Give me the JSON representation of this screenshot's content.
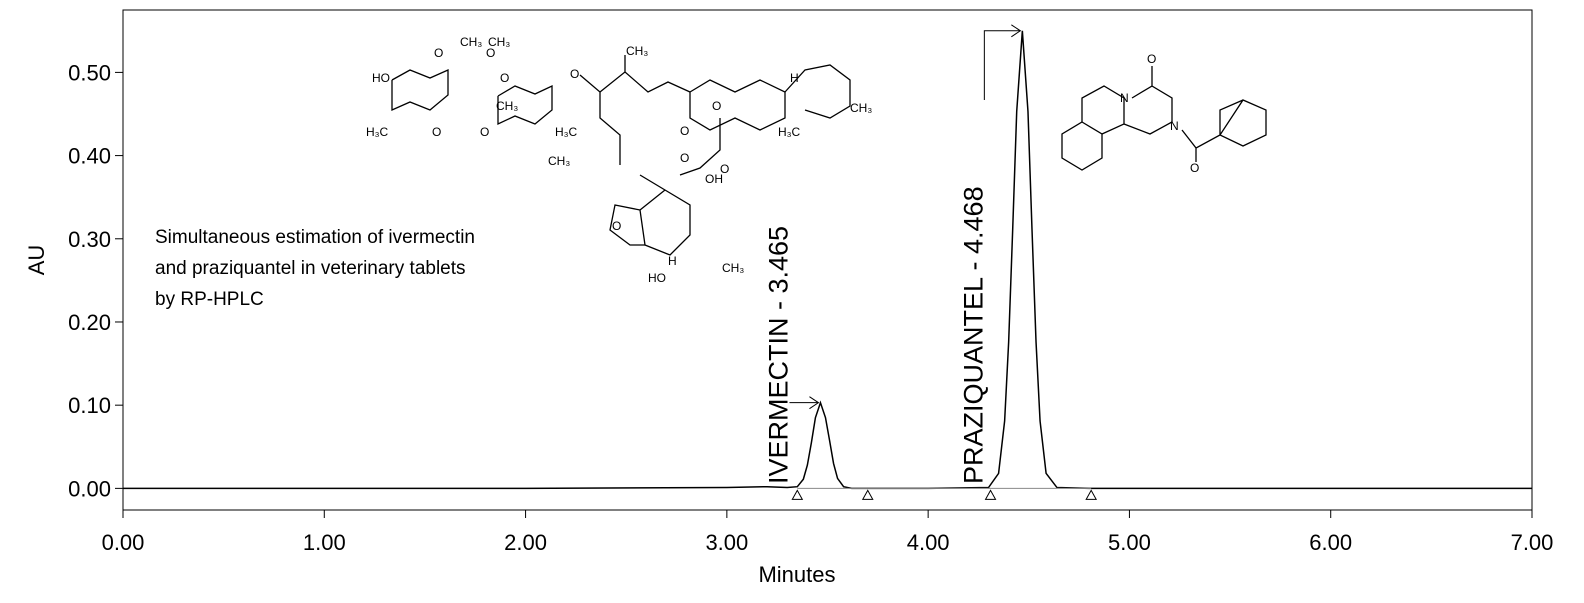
{
  "chart_data": {
    "type": "line",
    "xlabel": "Minutes",
    "ylabel": "AU",
    "xlim": [
      0,
      7
    ],
    "ylim": [
      -0.026,
      0.575
    ],
    "xticks": [
      {
        "value": 0,
        "label": "0.00"
      },
      {
        "value": 1,
        "label": "1.00"
      },
      {
        "value": 2,
        "label": "2.00"
      },
      {
        "value": 3,
        "label": "3.00"
      },
      {
        "value": 4,
        "label": "4.00"
      },
      {
        "value": 5,
        "label": "5.00"
      },
      {
        "value": 6,
        "label": "6.00"
      },
      {
        "value": 7,
        "label": "7.00"
      }
    ],
    "yticks": [
      {
        "value": 0,
        "label": "0.00"
      },
      {
        "value": 0.1,
        "label": "0.10"
      },
      {
        "value": 0.2,
        "label": "0.20"
      },
      {
        "value": 0.3,
        "label": "0.30"
      },
      {
        "value": 0.4,
        "label": "0.40"
      },
      {
        "value": 0.5,
        "label": "0.50"
      }
    ],
    "series": [
      {
        "name": "chromatogram",
        "color": "#000000",
        "x": [
          0,
          1,
          2,
          3,
          3.2,
          3.3,
          3.35,
          3.38,
          3.4,
          3.42,
          3.44,
          3.465,
          3.49,
          3.51,
          3.53,
          3.55,
          3.58,
          3.62,
          3.7,
          4.0,
          4.3,
          4.35,
          4.38,
          4.4,
          4.42,
          4.44,
          4.468,
          4.496,
          4.516,
          4.536,
          4.556,
          4.586,
          4.64,
          4.8,
          5,
          6,
          7
        ],
        "values": [
          0,
          0,
          0,
          0.001,
          0.002,
          0.001,
          0.002,
          0.011,
          0.028,
          0.055,
          0.085,
          0.103,
          0.085,
          0.058,
          0.03,
          0.012,
          0.002,
          0,
          0,
          0,
          0.001,
          0.018,
          0.081,
          0.176,
          0.311,
          0.453,
          0.55,
          0.453,
          0.311,
          0.176,
          0.081,
          0.018,
          0.001,
          0,
          0,
          0,
          0
        ]
      }
    ],
    "baseline_marks": [
      3.35,
      3.7,
      4.31,
      4.81
    ],
    "peak_labels": [
      {
        "text": "IVERMECTIN - 3.465",
        "x": 3.465,
        "y": 0.103
      },
      {
        "text": "PRAZIQUANTEL - 4.468",
        "x": 4.468,
        "y": 0.55
      }
    ],
    "annotation": [
      "Simultaneous estimation of ivermectin",
      "and praziquantel in veterinary tablets",
      "by RP-HPLC"
    ],
    "ivermectin_atoms": [
      "CH₃",
      "O",
      "O",
      "CH₃",
      "HO",
      "H₃C",
      "O",
      "O",
      "O",
      "CH₃",
      "O",
      "CH₃",
      "H₃C",
      "O",
      "O",
      "CH₃",
      "H",
      "H₃C",
      "CH₃",
      "O",
      "O",
      "OH",
      "O",
      "H",
      "HO",
      "CH₃"
    ],
    "praziquantel_atoms": [
      "O",
      "N",
      "N",
      "O"
    ]
  }
}
